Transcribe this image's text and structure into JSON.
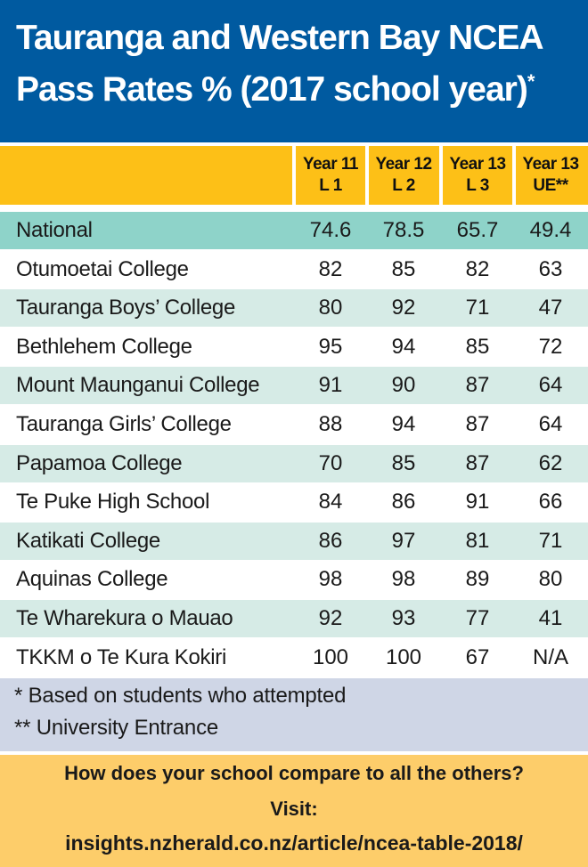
{
  "title_line1": "Tauranga and Western Bay NCEA",
  "title_line2": "Pass Rates % (2017 school year)",
  "title_asterisk": "*",
  "chart_data": {
    "type": "table",
    "columns": [
      {
        "line1": "Year 11",
        "line2": "L 1"
      },
      {
        "line1": "Year 12",
        "line2": "L 2"
      },
      {
        "line1": "Year 13",
        "line2": "L 3"
      },
      {
        "line1": "Year 13",
        "line2": "UE**"
      }
    ],
    "rows": [
      {
        "name": "National",
        "values": [
          "74.6",
          "78.5",
          "65.7",
          "49.4"
        ]
      },
      {
        "name": "Otumoetai College",
        "values": [
          "82",
          "85",
          "82",
          "63"
        ]
      },
      {
        "name": "Tauranga Boys’ College",
        "values": [
          "80",
          "92",
          "71",
          "47"
        ]
      },
      {
        "name": "Bethlehem College",
        "values": [
          "95",
          "94",
          "85",
          "72"
        ]
      },
      {
        "name": "Mount Maunganui College",
        "values": [
          "91",
          "90",
          "87",
          "64"
        ]
      },
      {
        "name": "Tauranga Girls’ College",
        "values": [
          "88",
          "94",
          "87",
          "64"
        ]
      },
      {
        "name": "Papamoa College",
        "values": [
          "70",
          "85",
          "87",
          "62"
        ]
      },
      {
        "name": "Te Puke High School",
        "values": [
          "84",
          "86",
          "91",
          "66"
        ]
      },
      {
        "name": "Katikati College",
        "values": [
          "86",
          "97",
          "81",
          "71"
        ]
      },
      {
        "name": "Aquinas College",
        "values": [
          "98",
          "98",
          "89",
          "80"
        ]
      },
      {
        "name": "Te Wharekura o Mauao",
        "values": [
          "92",
          "93",
          "77",
          "41"
        ]
      },
      {
        "name": "TKKM o Te Kura Kokiri",
        "values": [
          "100",
          "100",
          "67",
          "N/A"
        ]
      }
    ]
  },
  "notes": {
    "note1": "* Based on students who attempted",
    "note2": "**  University Entrance"
  },
  "footer": {
    "question": "How does your school compare to all the others?",
    "visit": "Visit:",
    "link": "insights.nzherald.co.nz/article/ncea-table-2018/"
  },
  "colors": {
    "header_bg": "#005aa0",
    "column_header_bg": "#fdc017",
    "national_row_bg": "#8ed3c9",
    "shaded_row_bg": "#d6ebe6",
    "notes_bg": "#cfd6e6",
    "footer_bg": "#fdcd6a"
  }
}
